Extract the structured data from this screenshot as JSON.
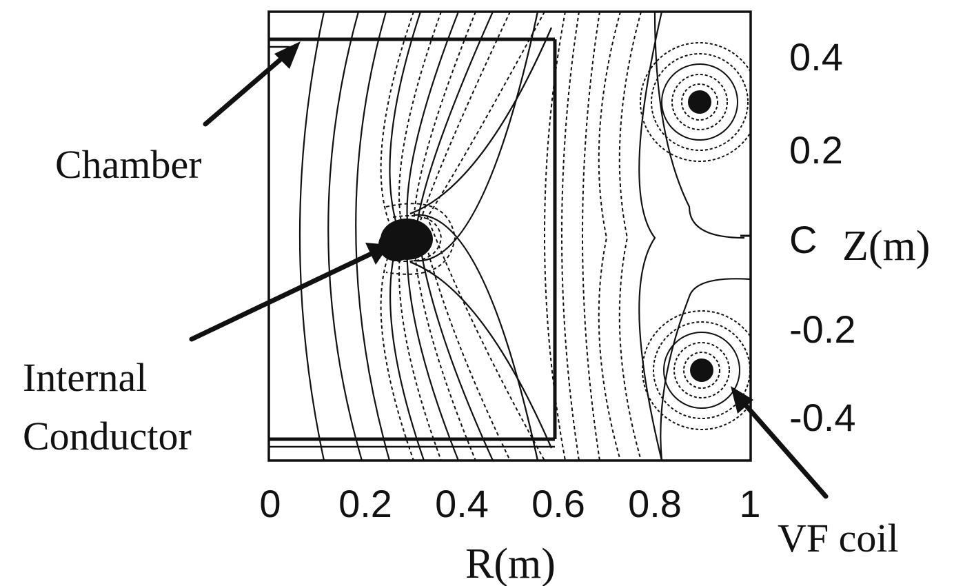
{
  "labels": {
    "chamber": "Chamber",
    "internal_line1": "Internal",
    "internal_line2": "Conductor",
    "vf_coil": "VF coil",
    "x_axis": "R(m)",
    "y_axis": "Z(m)"
  },
  "x_ticks": [
    "0",
    "0.2",
    "0.4",
    "0.6",
    "0.8",
    "1"
  ],
  "y_ticks": [
    "0.4",
    "0.2",
    "C",
    "-0.2",
    "-0.4"
  ],
  "ranges": {
    "r": [
      0,
      1
    ],
    "z": [
      -0.4,
      0.4
    ]
  },
  "elements": {
    "internal_conductor": {
      "r": 0.27,
      "z": 0.0
    },
    "vf_coil_upper": {
      "r": 0.9,
      "z": 0.3
    },
    "vf_coil_lower": {
      "r": 0.9,
      "z": -0.3
    },
    "x_point": {
      "r": 0.48,
      "z": 0.0
    }
  },
  "colors": {
    "ink": "#111111",
    "background": "#ffffff"
  }
}
